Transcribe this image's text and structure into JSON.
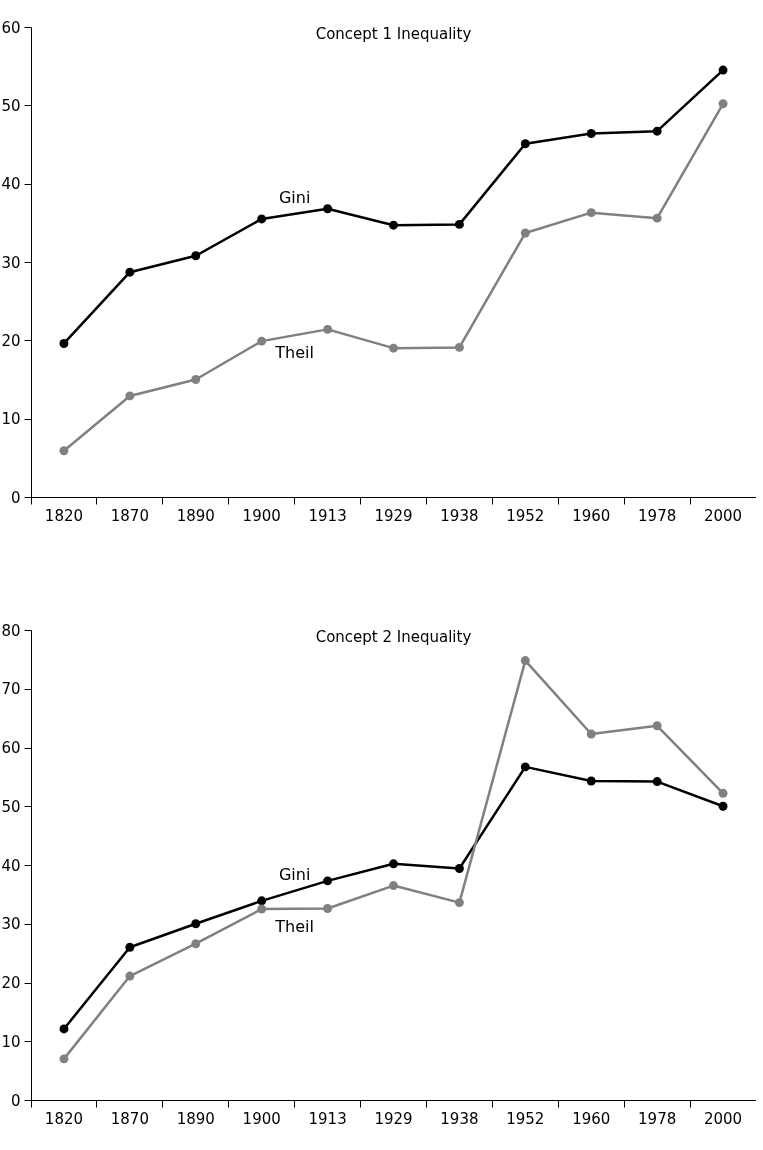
{
  "chart_data": [
    {
      "type": "line",
      "title": "Concept 1 Inequality",
      "categories": [
        "1820",
        "1870",
        "1890",
        "1900",
        "1913",
        "1929",
        "1938",
        "1952",
        "1960",
        "1978",
        "2000"
      ],
      "marker": "circle",
      "line_style": "solid",
      "ylim": [
        0,
        60
      ],
      "yticks": [
        0,
        10,
        20,
        30,
        40,
        50,
        60
      ],
      "series": [
        {
          "name": "Gini",
          "color": "#000000",
          "values": [
            19.6,
            28.7,
            30.8,
            35.5,
            36.8,
            34.7,
            34.8,
            45.1,
            46.4,
            46.7,
            54.5
          ]
        },
        {
          "name": "Theil",
          "color": "#808080",
          "values": [
            5.9,
            12.9,
            15.0,
            19.9,
            21.4,
            19.0,
            19.1,
            33.7,
            36.3,
            35.6,
            50.2
          ]
        }
      ]
    },
    {
      "type": "line",
      "title": "Concept 2 Inequality",
      "categories": [
        "1820",
        "1870",
        "1890",
        "1900",
        "1913",
        "1929",
        "1938",
        "1952",
        "1960",
        "1978",
        "2000"
      ],
      "marker": "circle",
      "line_style": "solid",
      "ylim": [
        0,
        80
      ],
      "yticks": [
        0,
        10,
        20,
        30,
        40,
        50,
        60,
        70,
        80
      ],
      "series": [
        {
          "name": "Gini",
          "color": "#000000",
          "values": [
            12.1,
            26.0,
            30.0,
            33.9,
            37.3,
            40.2,
            39.4,
            56.7,
            54.3,
            54.2,
            50.0
          ]
        },
        {
          "name": "Theil",
          "color": "#808080",
          "values": [
            7.0,
            21.1,
            26.6,
            32.5,
            32.6,
            36.5,
            33.6,
            74.8,
            62.3,
            63.7,
            52.2
          ]
        }
      ]
    }
  ]
}
